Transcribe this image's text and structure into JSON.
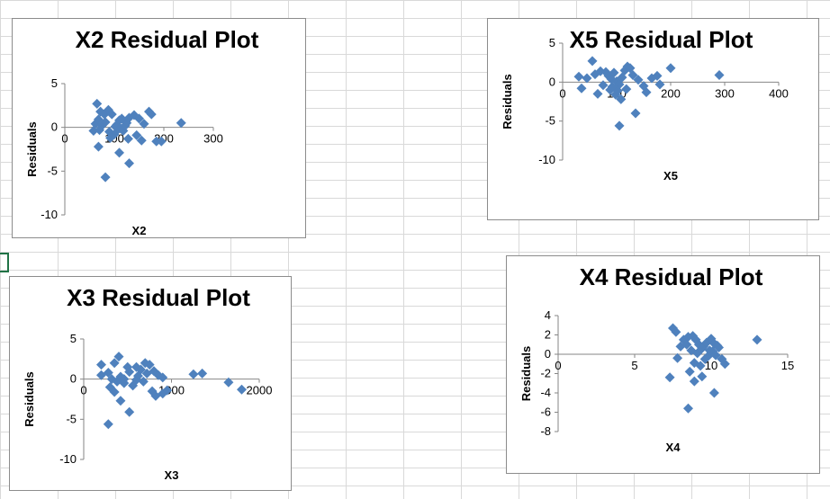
{
  "chart_data": [
    {
      "id": "x2",
      "type": "scatter",
      "title": "X2  Residual Plot",
      "xlabel": "X2",
      "ylabel": "Residuals",
      "xlim": [
        0,
        300
      ],
      "ylim": [
        -10,
        5
      ],
      "xticks": [
        0,
        100,
        200,
        300
      ],
      "yticks": [
        5,
        0,
        -5,
        -10
      ],
      "points": [
        [
          65,
          2.7
        ],
        [
          72,
          1.8
        ],
        [
          80,
          1.5
        ],
        [
          88,
          2.0
        ],
        [
          95,
          1.5
        ],
        [
          62,
          0.4
        ],
        [
          68,
          0.9
        ],
        [
          75,
          0.2
        ],
        [
          82,
          0.6
        ],
        [
          90,
          -0.5
        ],
        [
          100,
          -0.8
        ],
        [
          105,
          0.3
        ],
        [
          110,
          0.8
        ],
        [
          115,
          1.0
        ],
        [
          120,
          0.1
        ],
        [
          125,
          0.5
        ],
        [
          130,
          1.1
        ],
        [
          140,
          1.4
        ],
        [
          150,
          1.0
        ],
        [
          160,
          0.4
        ],
        [
          170,
          1.8
        ],
        [
          175,
          1.5
        ],
        [
          58,
          -0.4
        ],
        [
          70,
          -0.3
        ],
        [
          92,
          -1.2
        ],
        [
          108,
          -0.2
        ],
        [
          118,
          -0.4
        ],
        [
          128,
          -1.3
        ],
        [
          145,
          -0.9
        ],
        [
          155,
          -1.5
        ],
        [
          185,
          -1.6
        ],
        [
          195,
          -1.6
        ],
        [
          110,
          -2.9
        ],
        [
          130,
          -4.1
        ],
        [
          68,
          -2.2
        ],
        [
          82,
          -5.7
        ],
        [
          235,
          0.5
        ],
        [
          102,
          0.1
        ],
        [
          112,
          -0.1
        ],
        [
          122,
          0.2
        ]
      ]
    },
    {
      "id": "x5",
      "type": "scatter",
      "title": "X5  Residual Plot",
      "xlabel": "X5",
      "ylabel": "Residuals",
      "xlim": [
        0,
        400
      ],
      "ylim": [
        -10,
        5
      ],
      "xticks": [
        0,
        100,
        200,
        300,
        400
      ],
      "yticks": [
        5,
        0,
        -5,
        -10
      ],
      "points": [
        [
          55,
          2.7
        ],
        [
          30,
          0.7
        ],
        [
          45,
          0.5
        ],
        [
          60,
          1.0
        ],
        [
          70,
          1.4
        ],
        [
          80,
          1.3
        ],
        [
          85,
          0.8
        ],
        [
          90,
          0.4
        ],
        [
          95,
          1.2
        ],
        [
          100,
          0.1
        ],
        [
          105,
          -0.3
        ],
        [
          110,
          0.6
        ],
        [
          115,
          1.5
        ],
        [
          120,
          2.0
        ],
        [
          125,
          1.8
        ],
        [
          130,
          0.9
        ],
        [
          140,
          0.3
        ],
        [
          150,
          -0.5
        ],
        [
          165,
          0.5
        ],
        [
          175,
          0.8
        ],
        [
          200,
          1.8
        ],
        [
          290,
          0.9
        ],
        [
          35,
          -0.8
        ],
        [
          65,
          -1.5
        ],
        [
          75,
          -0.4
        ],
        [
          88,
          -1.0
        ],
        [
          98,
          -1.6
        ],
        [
          108,
          -2.2
        ],
        [
          118,
          -0.9
        ],
        [
          135,
          -4.0
        ],
        [
          155,
          -1.3
        ],
        [
          105,
          -5.6
        ],
        [
          180,
          -0.3
        ],
        [
          92,
          -0.6
        ],
        [
          102,
          -1.1
        ]
      ]
    },
    {
      "id": "x3",
      "type": "scatter",
      "title": "X3  Residual Plot",
      "xlabel": "X3",
      "ylabel": "Residuals",
      "xlim": [
        0,
        2000
      ],
      "ylim": [
        -10,
        5
      ],
      "xticks": [
        0,
        1000,
        2000
      ],
      "yticks": [
        5,
        0,
        -5,
        -10
      ],
      "points": [
        [
          200,
          1.8
        ],
        [
          350,
          2.0
        ],
        [
          400,
          2.8
        ],
        [
          500,
          1.5
        ],
        [
          600,
          1.5
        ],
        [
          650,
          1.2
        ],
        [
          700,
          2.0
        ],
        [
          750,
          1.8
        ],
        [
          800,
          1.0
        ],
        [
          850,
          0.5
        ],
        [
          900,
          0.2
        ],
        [
          200,
          0.5
        ],
        [
          280,
          0.8
        ],
        [
          320,
          0.0
        ],
        [
          380,
          -0.3
        ],
        [
          420,
          0.3
        ],
        [
          460,
          -0.5
        ],
        [
          520,
          0.9
        ],
        [
          560,
          -0.8
        ],
        [
          620,
          0.4
        ],
        [
          680,
          -0.3
        ],
        [
          720,
          0.7
        ],
        [
          780,
          -1.5
        ],
        [
          820,
          -2.1
        ],
        [
          900,
          -1.8
        ],
        [
          950,
          -1.4
        ],
        [
          300,
          -1.0
        ],
        [
          350,
          -1.6
        ],
        [
          420,
          -2.7
        ],
        [
          520,
          -4.1
        ],
        [
          280,
          -5.6
        ],
        [
          1250,
          0.6
        ],
        [
          1350,
          0.7
        ],
        [
          1650,
          -0.4
        ],
        [
          1800,
          -1.3
        ],
        [
          460,
          0.0
        ],
        [
          600,
          -0.1
        ]
      ]
    },
    {
      "id": "x4",
      "type": "scatter",
      "title": "X4  Residual Plot",
      "xlabel": "X4",
      "ylabel": "Residuals",
      "xlim": [
        0,
        15
      ],
      "ylim": [
        -8,
        4
      ],
      "xticks": [
        0,
        5,
        10,
        15
      ],
      "yticks": [
        4,
        2,
        0,
        -2,
        -4,
        -6,
        -8
      ],
      "points": [
        [
          7.5,
          2.7
        ],
        [
          7.7,
          2.3
        ],
        [
          8.2,
          1.5
        ],
        [
          8.5,
          1.8
        ],
        [
          8.8,
          1.9
        ],
        [
          9.0,
          1.5
        ],
        [
          9.2,
          1.0
        ],
        [
          9.5,
          0.8
        ],
        [
          9.7,
          1.2
        ],
        [
          10.0,
          1.6
        ],
        [
          10.2,
          1.1
        ],
        [
          10.5,
          0.7
        ],
        [
          8.0,
          0.8
        ],
        [
          8.4,
          1.0
        ],
        [
          8.7,
          0.4
        ],
        [
          9.1,
          0.1
        ],
        [
          9.4,
          0.6
        ],
        [
          9.8,
          -0.2
        ],
        [
          10.1,
          0.3
        ],
        [
          10.4,
          0.9
        ],
        [
          10.7,
          -0.5
        ],
        [
          7.8,
          -0.4
        ],
        [
          8.9,
          -0.9
        ],
        [
          9.3,
          -1.2
        ],
        [
          9.6,
          -0.5
        ],
        [
          10.9,
          -1.0
        ],
        [
          8.6,
          -1.8
        ],
        [
          7.3,
          -2.4
        ],
        [
          8.9,
          -2.8
        ],
        [
          9.4,
          -2.3
        ],
        [
          10.2,
          -4.0
        ],
        [
          8.5,
          -5.6
        ],
        [
          13.0,
          1.5
        ],
        [
          9.9,
          0.4
        ],
        [
          10.3,
          -0.1
        ]
      ]
    }
  ]
}
